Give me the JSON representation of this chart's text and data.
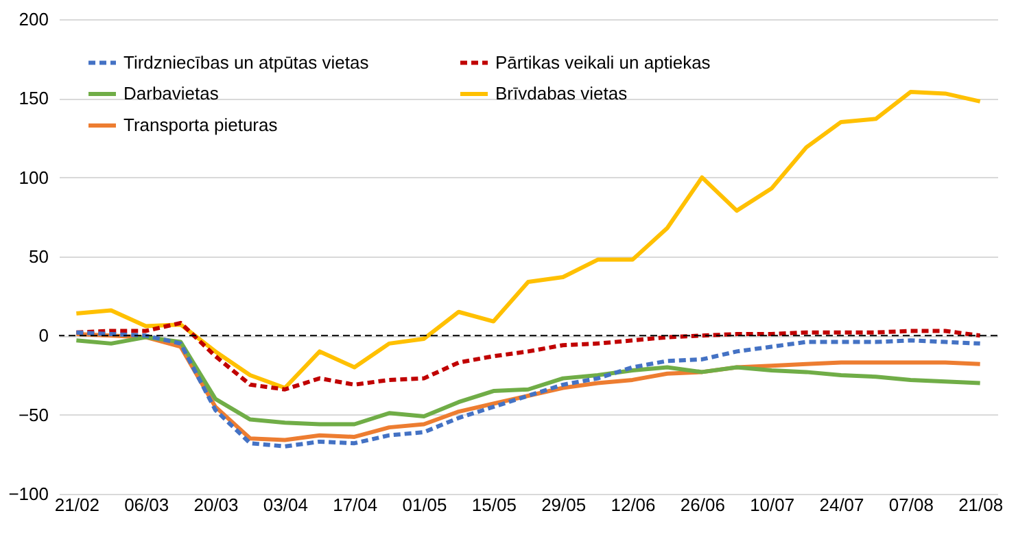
{
  "chart_data": {
    "type": "line",
    "categories": [
      "21/02",
      null,
      "06/03",
      null,
      "20/03",
      null,
      "03/04",
      null,
      "17/04",
      null,
      "01/05",
      null,
      "15/05",
      null,
      "29/05",
      null,
      "12/06",
      null,
      "26/06",
      null,
      "10/07",
      null,
      "24/07",
      null,
      "07/08",
      null,
      "21/08"
    ],
    "series": [
      {
        "name": "Tirdzniecības un atpūtas vietas",
        "color": "#4472c4",
        "line_style": "dashed",
        "values": [
          2,
          1,
          0,
          -5,
          -47,
          -68,
          -70,
          -67,
          -68,
          -63,
          -61,
          -52,
          -45,
          -38,
          -31,
          -27,
          -20,
          -16,
          -15,
          -10,
          -7,
          -4,
          -4,
          -4,
          -3,
          -4,
          -5
        ]
      },
      {
        "name": "Pārtikas veikali un aptiekas",
        "color": "#c00000",
        "line_style": "dashed",
        "values": [
          2,
          3,
          3,
          8,
          -13,
          -31,
          -34,
          -27,
          -31,
          -28,
          -27,
          -17,
          -13,
          -10,
          -6,
          -5,
          -3,
          -1,
          0,
          1,
          1,
          2,
          2,
          2,
          3,
          3,
          0
        ]
      },
      {
        "name": "Darbavietas",
        "color": "#70ad47",
        "line_style": "solid",
        "values": [
          -3,
          -5,
          -1,
          -4,
          -40,
          -53,
          -55,
          -56,
          -56,
          -49,
          -51,
          -42,
          -35,
          -34,
          -27,
          -25,
          -22,
          -20,
          -23,
          -20,
          -22,
          -23,
          -25,
          -26,
          -28,
          -29,
          -30
        ]
      },
      {
        "name": "Brīvdabas vietas",
        "color": "#ffc000",
        "line_style": "solid",
        "values": [
          14,
          16,
          6,
          7,
          -10,
          -25,
          -33,
          -10,
          -20,
          -5,
          -2,
          15,
          9,
          34,
          37,
          48,
          48,
          68,
          100,
          79,
          93,
          119,
          135,
          137,
          154,
          153,
          148
        ]
      },
      {
        "name": "Transporta pieturas",
        "color": "#ed7d31",
        "line_style": "solid",
        "values": [
          1,
          0,
          -1,
          -7,
          -45,
          -65,
          -66,
          -63,
          -64,
          -58,
          -56,
          -48,
          -43,
          -38,
          -33,
          -30,
          -28,
          -24,
          -23,
          -20,
          -19,
          -18,
          -17,
          -17,
          -17,
          -17,
          -18
        ]
      }
    ],
    "ylim": [
      -100,
      200
    ],
    "yticks": [
      -100,
      -50,
      0,
      50,
      100,
      150,
      200
    ],
    "grid": "y",
    "legend": "top left",
    "ref_lines": [
      {
        "axis": "y",
        "value": 0,
        "color": "#000000",
        "line_style": "dashed"
      }
    ]
  }
}
